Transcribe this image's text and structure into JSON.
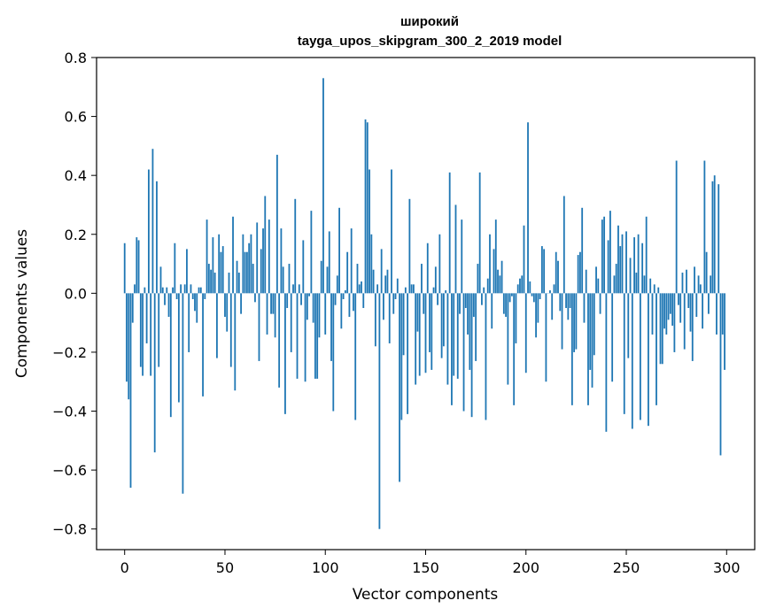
{
  "chart_data": {
    "type": "bar",
    "title_line1": "широкий",
    "title_line2": "tayga_upos_skipgram_300_2_2019 model",
    "xlabel": "Vector components",
    "ylabel": "Components values",
    "xlim": [
      -14,
      314
    ],
    "ylim": [
      -0.87,
      0.8
    ],
    "xticks": [
      0,
      50,
      100,
      150,
      200,
      250,
      300
    ],
    "xtick_labels": [
      "0",
      "50",
      "100",
      "150",
      "200",
      "250",
      "300"
    ],
    "yticks": [
      -0.8,
      -0.6,
      -0.4,
      -0.2,
      0.0,
      0.2,
      0.4,
      0.6,
      0.8
    ],
    "ytick_labels": [
      "−0.8",
      "−0.6",
      "−0.4",
      "−0.2",
      "0.0",
      "0.2",
      "0.4",
      "0.6",
      "0.8"
    ],
    "bar_color": "#1f77b4",
    "grid": false,
    "values": [
      0.17,
      -0.3,
      -0.36,
      -0.66,
      -0.1,
      0.03,
      0.19,
      0.18,
      -0.25,
      -0.28,
      0.02,
      -0.17,
      0.42,
      -0.28,
      0.49,
      -0.54,
      0.38,
      -0.25,
      0.09,
      0.02,
      -0.04,
      0.02,
      -0.08,
      -0.42,
      0.02,
      0.17,
      -0.02,
      -0.37,
      0.03,
      -0.68,
      0.03,
      0.15,
      -0.2,
      0.03,
      -0.02,
      -0.06,
      -0.1,
      0.02,
      0.02,
      -0.35,
      -0.02,
      0.25,
      0.1,
      0.08,
      0.19,
      0.07,
      -0.22,
      0.2,
      0.14,
      0.16,
      -0.08,
      -0.13,
      0.07,
      -0.25,
      0.26,
      -0.33,
      0.11,
      0.07,
      -0.07,
      0.2,
      0.14,
      0.14,
      0.17,
      0.2,
      0.1,
      -0.03,
      0.24,
      -0.23,
      0.15,
      0.22,
      0.33,
      -0.14,
      0.25,
      -0.07,
      -0.07,
      -0.15,
      0.47,
      -0.32,
      0.22,
      0.09,
      -0.41,
      -0.05,
      0.1,
      -0.2,
      0.03,
      0.32,
      -0.29,
      0.03,
      -0.04,
      0.18,
      -0.3,
      -0.09,
      -0.01,
      0.28,
      -0.1,
      -0.29,
      -0.29,
      -0.15,
      0.11,
      0.73,
      -0.14,
      0.09,
      0.21,
      -0.23,
      -0.4,
      -0.04,
      0.06,
      0.29,
      -0.12,
      -0.02,
      0.01,
      0.14,
      -0.08,
      0.22,
      -0.06,
      -0.43,
      0.1,
      0.03,
      0.04,
      -0.05,
      0.59,
      0.58,
      0.42,
      0.2,
      0.08,
      -0.18,
      0.03,
      -0.8,
      0.15,
      -0.09,
      0.06,
      0.08,
      -0.17,
      0.42,
      -0.07,
      -0.02,
      0.05,
      -0.64,
      -0.43,
      -0.21,
      0.02,
      -0.41,
      0.32,
      0.03,
      0.03,
      -0.31,
      -0.13,
      -0.28,
      0.1,
      -0.07,
      -0.27,
      0.17,
      -0.2,
      -0.26,
      0.02,
      0.09,
      -0.04,
      0.2,
      -0.22,
      -0.18,
      0.01,
      -0.31,
      0.41,
      -0.38,
      -0.28,
      0.3,
      -0.29,
      -0.07,
      0.25,
      -0.4,
      -0.05,
      -0.14,
      -0.26,
      -0.42,
      -0.08,
      -0.23,
      0.1,
      0.41,
      -0.04,
      0.02,
      -0.43,
      0.05,
      0.2,
      -0.12,
      0.15,
      0.25,
      0.08,
      0.06,
      0.11,
      -0.07,
      -0.08,
      -0.31,
      -0.03,
      -0.01,
      -0.38,
      -0.17,
      0.03,
      0.05,
      0.06,
      0.23,
      -0.27,
      0.58,
      0.04,
      -0.01,
      -0.03,
      -0.15,
      -0.1,
      -0.02,
      0.16,
      0.15,
      -0.3,
      0.0,
      0.01,
      -0.09,
      0.03,
      0.14,
      0.11,
      -0.06,
      -0.19,
      0.33,
      -0.05,
      -0.09,
      -0.05,
      -0.38,
      -0.2,
      -0.19,
      0.13,
      0.14,
      0.29,
      -0.1,
      0.08,
      -0.38,
      -0.26,
      -0.32,
      -0.21,
      0.09,
      0.05,
      -0.07,
      0.25,
      0.26,
      -0.47,
      0.18,
      0.28,
      -0.3,
      0.06,
      0.1,
      0.23,
      0.16,
      0.2,
      -0.41,
      0.21,
      -0.22,
      0.12,
      -0.46,
      0.19,
      0.07,
      0.2,
      -0.43,
      0.17,
      0.06,
      0.26,
      -0.45,
      0.05,
      -0.14,
      0.03,
      -0.38,
      0.02,
      -0.24,
      -0.24,
      -0.12,
      -0.14,
      -0.09,
      -0.07,
      -0.11,
      -0.2,
      0.45,
      -0.04,
      -0.1,
      0.07,
      -0.19,
      0.08,
      -0.05,
      -0.13,
      -0.23,
      0.09,
      -0.08,
      0.06,
      0.03,
      -0.12,
      0.45,
      0.14,
      -0.07,
      0.06,
      0.38,
      0.4,
      -0.14,
      0.37,
      -0.55,
      -0.14,
      -0.26
    ]
  }
}
